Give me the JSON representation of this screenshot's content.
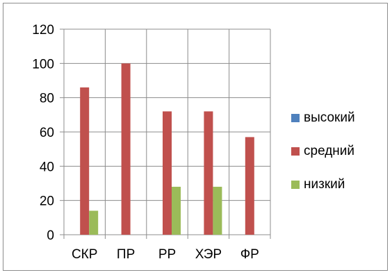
{
  "chart_data": {
    "type": "bar",
    "title": "",
    "xlabel": "",
    "ylabel": "",
    "categories": [
      "СКР",
      "ПР",
      "РР",
      "ХЭР",
      "ФР"
    ],
    "ylim": [
      0,
      120
    ],
    "yticks": [
      0,
      20,
      40,
      60,
      80,
      100,
      120
    ],
    "grid": true,
    "legend_position": "right",
    "series": [
      {
        "name": "высокий",
        "color": "#4f81bd",
        "values": [
          0,
          0,
          0,
          0,
          0
        ]
      },
      {
        "name": "средний",
        "color": "#c0504d",
        "values": [
          86,
          100,
          72,
          72,
          57
        ]
      },
      {
        "name": "низкий",
        "color": "#9bbb59",
        "values": [
          14,
          0,
          28,
          28,
          0
        ]
      }
    ]
  }
}
